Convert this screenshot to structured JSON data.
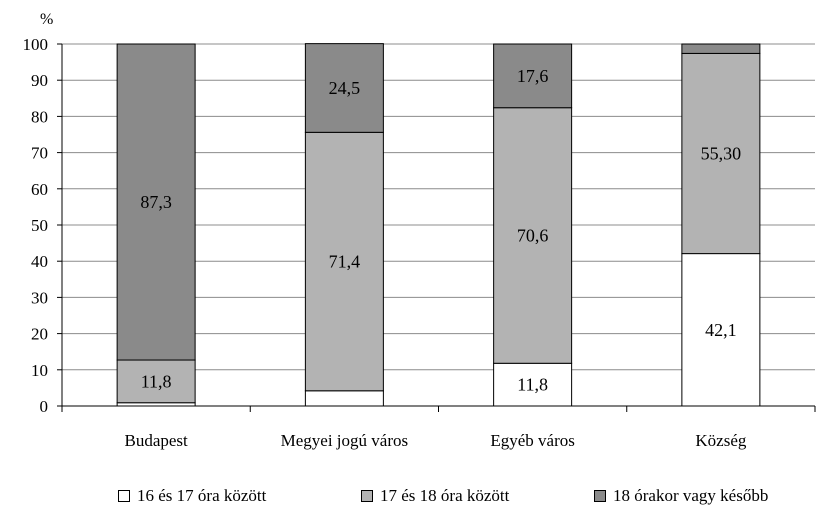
{
  "chart_data": {
    "type": "bar",
    "stacked": true,
    "categories": [
      "Budapest",
      "Megyei jogú város",
      "Egyéb város",
      "Község"
    ],
    "series": [
      {
        "name": "16 és 17 óra között",
        "color": "#ffffff",
        "values": [
          0.9,
          4.2,
          11.8,
          42.1
        ],
        "labels": [
          "",
          "",
          "11,8",
          "42,1"
        ]
      },
      {
        "name": "17 és 18 óra között",
        "color": "#b3b3b3",
        "values": [
          11.8,
          71.4,
          70.6,
          55.3
        ],
        "labels": [
          "11,8",
          "71,4",
          "70,6",
          "55,30"
        ]
      },
      {
        "name": "18 órakor vagy később",
        "color": "#8a8a8a",
        "values": [
          87.3,
          24.5,
          17.6,
          2.6
        ],
        "labels": [
          "87,3",
          "24,5",
          "17,6",
          ""
        ]
      }
    ],
    "ylabel": "%",
    "ylim": [
      0,
      100
    ],
    "yticks": [
      "0",
      "10",
      "20",
      "30",
      "40",
      "50",
      "60",
      "70",
      "80",
      "90",
      "100"
    ],
    "grid": true,
    "legend_position": "bottom"
  }
}
